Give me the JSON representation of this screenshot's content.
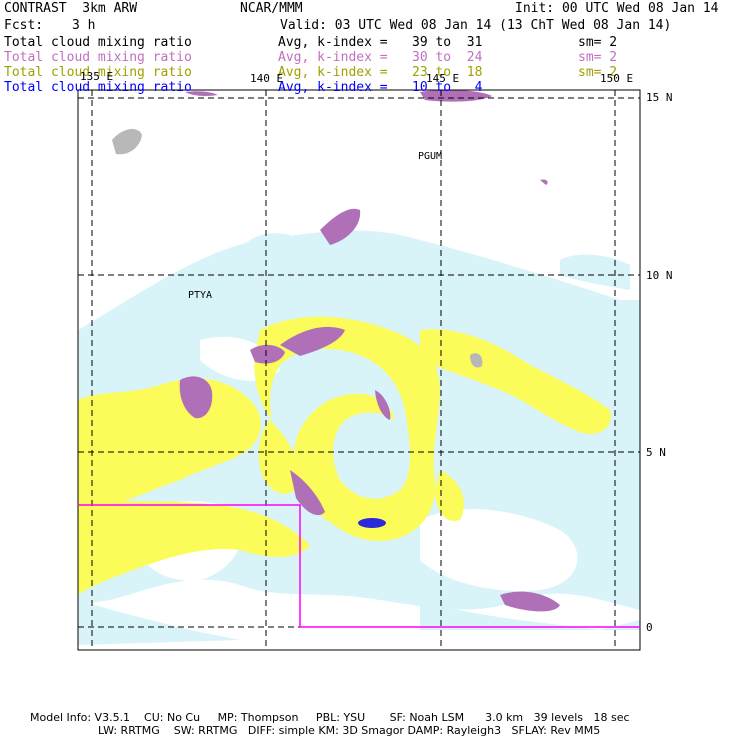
{
  "header": {
    "model": "CONTRAST  3km ARW",
    "org": "NCAR/MMM",
    "init": "Init: 00 UTC Wed 08 Jan 14",
    "fcst_label": "Fcst:",
    "fcst_value": "3 h",
    "valid": "Valid: 03 UTC Wed 08 Jan 14 (13 ChT Wed 08 Jan 14)"
  },
  "fields": [
    {
      "name": "Total cloud mixing ratio",
      "stat": "Avg, k-index =",
      "range": "39 to  31",
      "sm": "sm= 2",
      "color": "#000000"
    },
    {
      "name": "Total cloud mixing ratio",
      "stat": "Avg, k-index =",
      "range": "30 to  24",
      "sm": "sm= 2",
      "color": "#c070c0"
    },
    {
      "name": "Total cloud mixing ratio",
      "stat": "Avg, k-index =",
      "range": "23 to  18",
      "sm": "sm= 2",
      "color": "#a0a000"
    },
    {
      "name": "Total cloud mixing ratio",
      "stat": "Avg, k-index =",
      "range": "10 to   4",
      "sm": "",
      "color": "#0000ff"
    }
  ],
  "lon_labels": [
    "135 E",
    "140 E",
    "145 E",
    "150 E"
  ],
  "lat_labels": [
    "15 N",
    "10 N",
    "5 N",
    "0"
  ],
  "place_labels": [
    "PGUM",
    "PTYA"
  ],
  "footer": {
    "line1": "Model Info: V3.5.1    CU: No Cu     MP: Thompson     PBL: YSU       SF: Noah LSM      3.0 km   39 levels   18 sec",
    "line2": "LW: RRTMG    SW: RRTMG   DIFF: simple KM: 3D Smagor DAMP: Rayleigh3   SFLAY: Rev MM5"
  },
  "colors": {
    "low_cloud": "#d8f4f8",
    "mid_cloud": "#fbfb5a",
    "high_cloud": "#b070b8",
    "core": "#2a2ad8",
    "land": "#b8b8b8",
    "domain_box": "#ff00ff"
  }
}
